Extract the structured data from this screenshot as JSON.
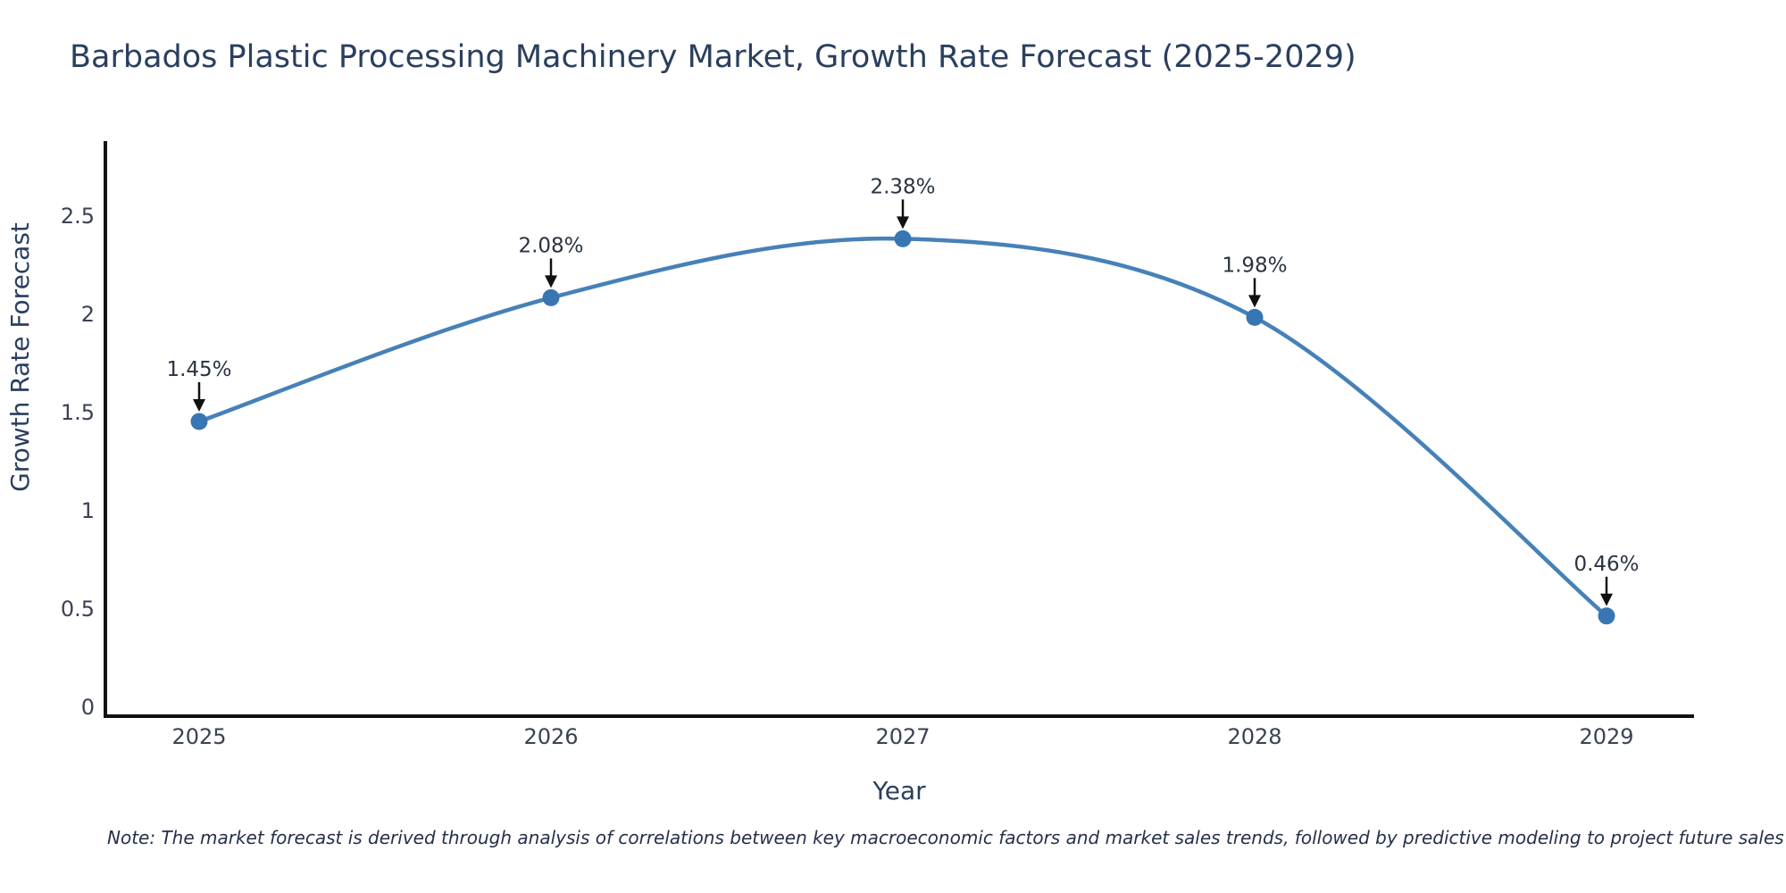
{
  "title": "Barbados Plastic Processing Machinery Market, Growth Rate Forecast (2025-2029)",
  "footnote": "Note: The market forecast is derived through analysis of correlations between key macroeconomic factors and market sales trends, followed by predictive modeling to project future sales",
  "chart_data": {
    "type": "line",
    "title": "Barbados Plastic Processing Machinery Market, Growth Rate Forecast (2025-2029)",
    "xlabel": "Year",
    "ylabel": "Growth Rate Forecast",
    "x": [
      2025,
      2026,
      2027,
      2028,
      2029
    ],
    "values": [
      1.45,
      2.08,
      2.38,
      1.98,
      0.46
    ],
    "point_labels": [
      "1.45%",
      "2.08%",
      "2.38%",
      "1.98%",
      "0.46%"
    ],
    "yticks": [
      0,
      0.5,
      1,
      1.5,
      2,
      2.5
    ],
    "xticks": [
      "2025",
      "2026",
      "2027",
      "2028",
      "2029"
    ],
    "ylim": [
      0,
      2.9
    ],
    "line_shape": "spline",
    "grid": false,
    "legend": "none",
    "colors": {
      "line": "#4681b8",
      "marker": "#3876b3",
      "axis": "#111111",
      "tick_text": "#3b4252",
      "title_text": "#2a3f5f",
      "annotation_text": "#2a3340",
      "arrow": "#111111"
    }
  }
}
